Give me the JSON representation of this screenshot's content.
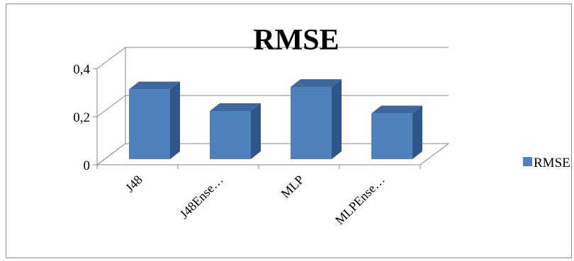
{
  "chart_data": {
    "type": "bar",
    "style": "3d-column",
    "title": "RMSE",
    "categories": [
      "J48",
      "J48Ense…",
      "MLP",
      "MLPEnse…"
    ],
    "series": [
      {
        "name": "RMSE",
        "values": [
          0.29,
          0.2,
          0.3,
          0.19
        ],
        "color": "#4f81bd"
      }
    ],
    "y_ticks": [
      "0",
      "0,2",
      "0,4"
    ],
    "ylim": [
      0,
      0.4
    ],
    "grid": true,
    "legend": "right"
  }
}
